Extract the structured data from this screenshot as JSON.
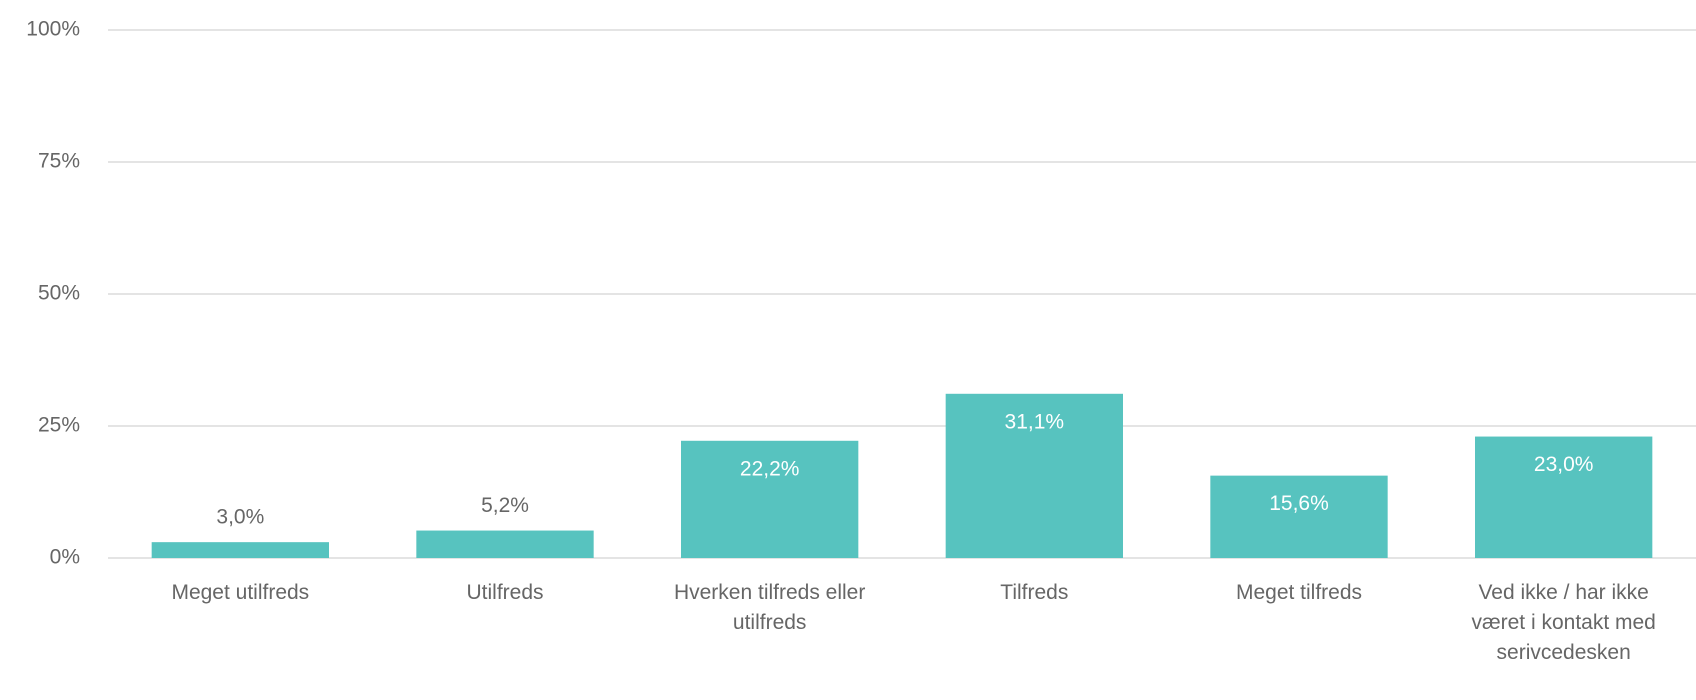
{
  "chart_data": {
    "type": "bar",
    "categories": [
      "Meget utilfreds",
      "Utilfreds",
      "Hverken tilfreds eller utilfreds",
      "Tilfreds",
      "Meget tilfreds",
      "Ved ikke / har ikke været i kontakt med serivcedesken"
    ],
    "values": [
      3.0,
      5.2,
      22.2,
      31.1,
      15.6,
      23.0
    ],
    "value_labels": [
      "3,0%",
      "5,2%",
      "22,2%",
      "31,1%",
      "15,6%",
      "23,0%"
    ],
    "color": "#57c3bf",
    "ylim": [
      0,
      100
    ],
    "yticks": [
      {
        "value": 0,
        "label": "0%"
      },
      {
        "value": 25,
        "label": "25%"
      },
      {
        "value": 50,
        "label": "50%"
      },
      {
        "value": 75,
        "label": "75%"
      },
      {
        "value": 100,
        "label": "100%"
      }
    ],
    "grid": true
  }
}
